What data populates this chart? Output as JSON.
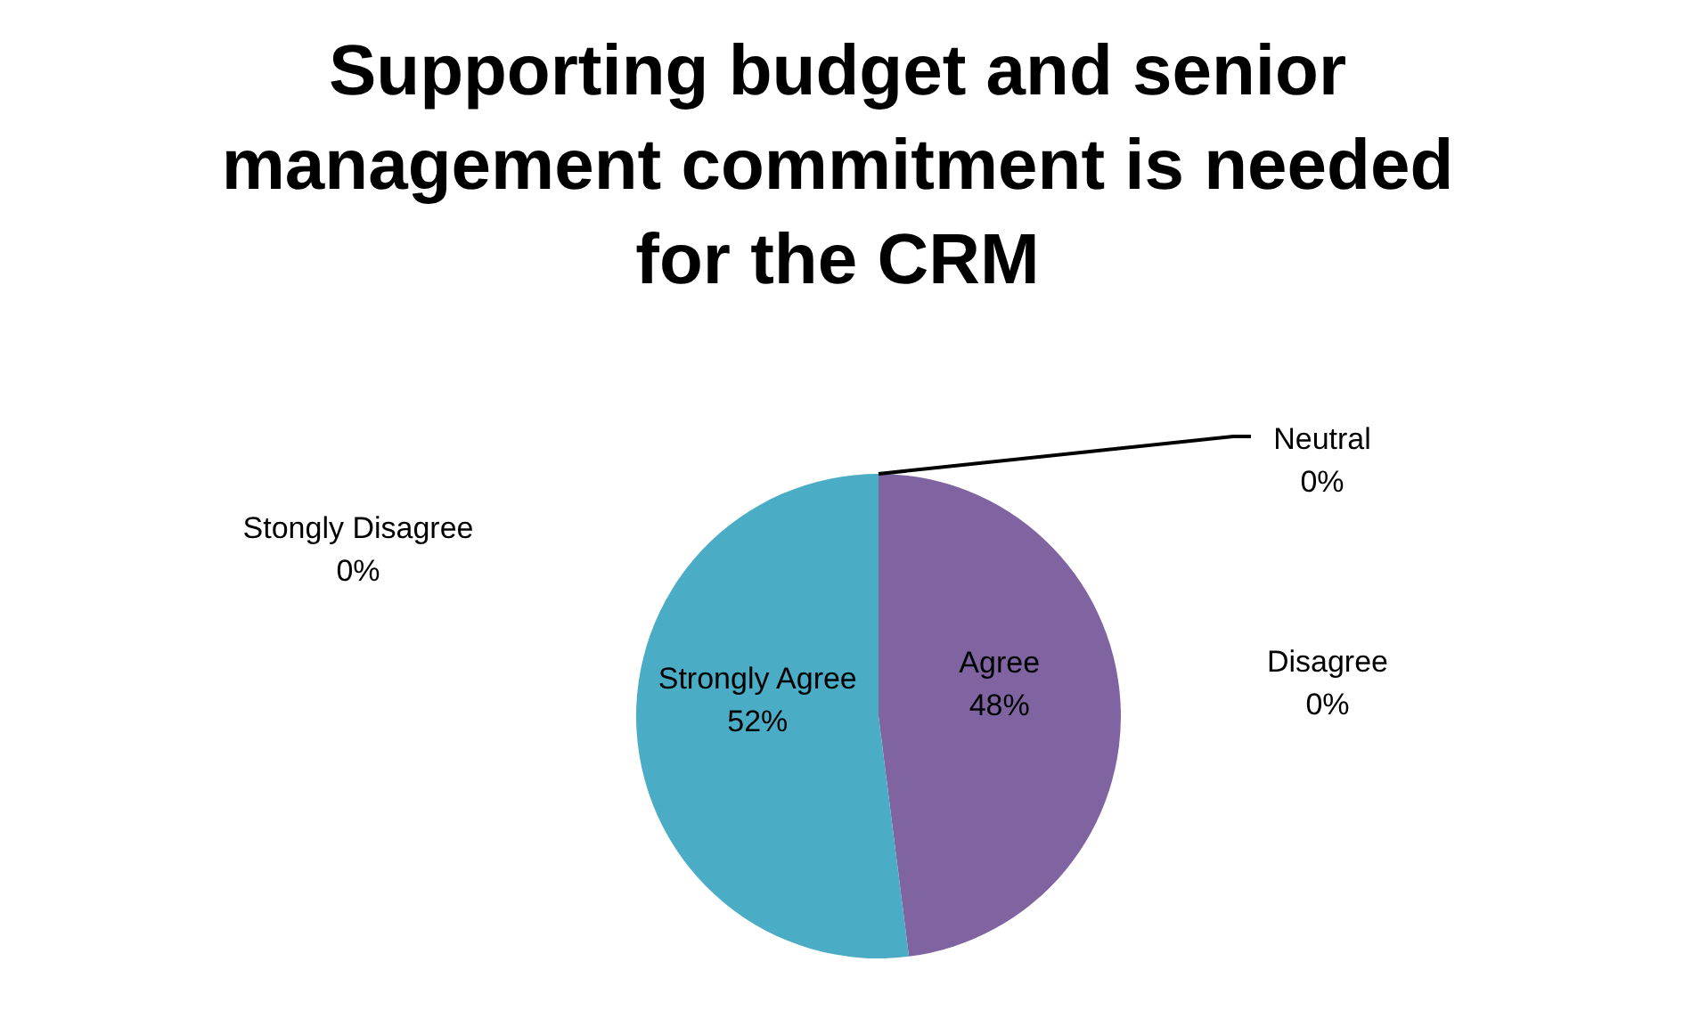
{
  "chart_data": {
    "type": "pie",
    "title": "Supporting budget and senior management commitment is needed for the CRM",
    "categories": [
      "Agree",
      "Strongly Agree",
      "Neutral",
      "Disagree",
      "Stongly Disagree"
    ],
    "values": [
      48,
      52,
      0,
      0,
      0
    ],
    "colors": [
      "#8064a2",
      "#4bacc6",
      "#9bbb59",
      "#c0504d",
      "#4f81bd"
    ],
    "value_labels": [
      "48%",
      "52%",
      "0%",
      "0%",
      "0%"
    ],
    "legend": false
  }
}
